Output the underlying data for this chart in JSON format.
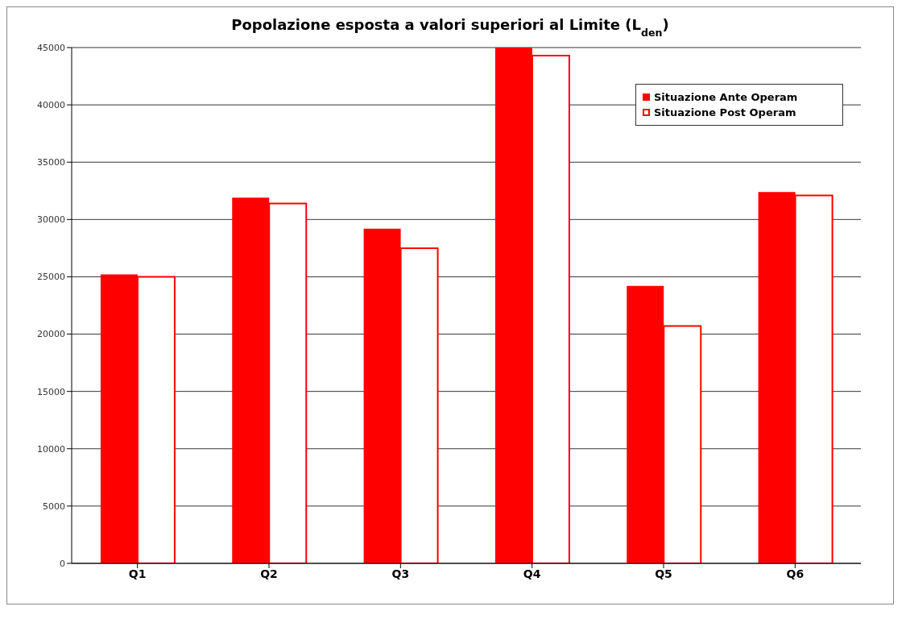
{
  "chart_data": {
    "type": "bar",
    "title": "Popolazione esposta a valori superiori al Limite (L$_{den}$)",
    "categories": [
      "Q1",
      "Q2",
      "Q3",
      "Q4",
      "Q5",
      "Q6"
    ],
    "series": [
      {
        "name": "Situazione Ante Operam",
        "color": "#ff0000",
        "values": [
          25200,
          31900,
          29200,
          45000,
          24200,
          32400
        ]
      },
      {
        "name": "Situazione Post Operam",
        "color": "#ff0000",
        "values": [
          25000,
          31400,
          27500,
          44300,
          20700,
          32100
        ]
      }
    ],
    "ylim": [
      0,
      45000
    ],
    "yticks": [
      0,
      5000,
      10000,
      15000,
      20000,
      25000,
      30000,
      35000,
      40000,
      45000
    ],
    "grid": "y",
    "legend": "top right"
  }
}
